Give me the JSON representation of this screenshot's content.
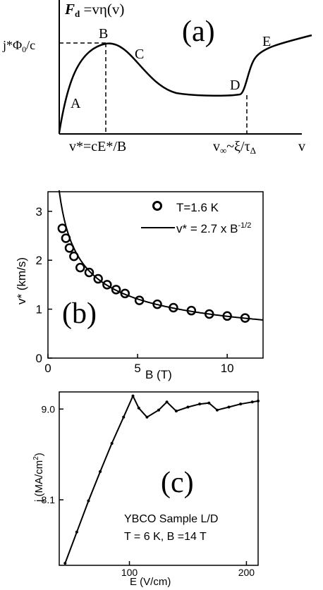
{
  "chart_data": [
    {
      "type": "line",
      "panel_label": "(a)",
      "y_axis_label": "F_d = vη(v)",
      "y_axis_label_parts": {
        "main": "F",
        "sub": "d",
        "rest": " =vη(v)"
      },
      "x_axis_label": "v",
      "y_tick_label": "j*Φ₀/c",
      "y_tick_label_parts": {
        "pre": "j*Φ",
        "sub": "0",
        "post": "/c"
      },
      "x_tick_labels": [
        "v*=cE*/B",
        "v∞~ξ/τΔ"
      ],
      "x_tick_label_2_parts": {
        "pre": "v",
        "sub1": "∞",
        "mid": "~ξ/τ",
        "sub2": "Δ"
      },
      "point_labels": [
        "A",
        "B",
        "C",
        "D",
        "E"
      ],
      "curve_shape": "schematic: rises from origin (A) to maximum at v* (B), decreases (C) to flat minimum, rises sharply near v∞ (D), then increases slowly (E)"
    },
    {
      "type": "scatter",
      "panel_label": "(b)",
      "xlabel": "B (T)",
      "ylabel": "v* (km/s)",
      "xlim": [
        0,
        12
      ],
      "ylim": [
        0,
        3.4
      ],
      "x_ticks": [
        0,
        5,
        10
      ],
      "y_ticks": [
        0,
        1,
        2,
        3
      ],
      "legend": "top-right",
      "series": [
        {
          "name": "T=1.6 K",
          "marker": "open-circle",
          "x": [
            0.8,
            1.0,
            1.2,
            1.45,
            1.8,
            2.3,
            2.8,
            3.3,
            3.8,
            4.3,
            5.1,
            6.1,
            7.0,
            8.0,
            9.0,
            10.0,
            11.0
          ],
          "y": [
            2.65,
            2.45,
            2.25,
            2.08,
            1.85,
            1.75,
            1.62,
            1.5,
            1.4,
            1.32,
            1.18,
            1.1,
            1.03,
            0.97,
            0.9,
            0.86,
            0.82
          ]
        },
        {
          "name": "v* = 2.7 x B^-1/2",
          "name_parts": {
            "pre": "v* = 2.7 x B",
            "sup": "-1/2"
          },
          "formula": "2.7 * B^(-1/2)",
          "style": "solid-line",
          "x_range": [
            0.62,
            12
          ]
        }
      ]
    },
    {
      "type": "scatter",
      "panel_label": "(c)",
      "xlabel": "E (V/cm)",
      "ylabel": "j (MA/cm²)",
      "ylabel_parts": {
        "pre": "j (MA/cm",
        "sup": "2",
        "post": ")"
      },
      "x_ticks": [
        100,
        200
      ],
      "y_ticks": [
        8.1,
        9.0
      ],
      "xlim": [
        40,
        210
      ],
      "ylim": [
        7.45,
        9.17
      ],
      "annotation_lines": [
        "YBCO Sample L/D",
        "T = 6 K, B =14 T"
      ],
      "series": [
        {
          "name": "",
          "marker": "dot",
          "x": [
            45,
            55,
            65,
            75,
            85,
            95,
            103,
            108,
            115,
            125,
            132,
            140,
            150,
            160,
            168,
            175,
            185,
            195,
            205,
            210
          ],
          "y": [
            7.47,
            7.78,
            8.09,
            8.38,
            8.66,
            8.92,
            9.13,
            9.01,
            8.92,
            8.99,
            9.07,
            8.98,
            9.02,
            9.05,
            9.06,
            8.99,
            9.02,
            9.05,
            9.07,
            9.08
          ]
        }
      ]
    }
  ]
}
